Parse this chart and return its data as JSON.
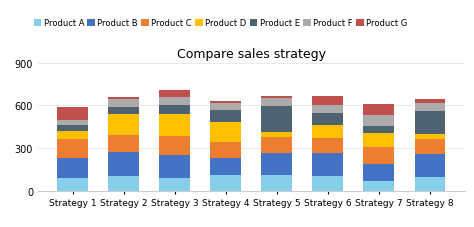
{
  "title": "Compare sales strategy",
  "categories": [
    "Strategy 1",
    "Strategy 2",
    "Strategy 3",
    "Strategy 4",
    "Strategy 5",
    "Strategy 6",
    "Strategy 7",
    "Strategy 8"
  ],
  "products": [
    "Product A",
    "Product B",
    "Product C",
    "Product D",
    "Product E",
    "Product F",
    "Product G"
  ],
  "colors": [
    "#87CEEB",
    "#4472C4",
    "#ED7D31",
    "#FFC000",
    "#4E6272",
    "#ABABAB",
    "#C0504D"
  ],
  "values": {
    "Product A": [
      90,
      100,
      90,
      110,
      110,
      100,
      70,
      95
    ],
    "Product B": [
      140,
      170,
      160,
      120,
      155,
      165,
      120,
      160
    ],
    "Product C": [
      130,
      120,
      135,
      110,
      115,
      105,
      115,
      105
    ],
    "Product D": [
      60,
      150,
      155,
      145,
      30,
      90,
      100,
      35
    ],
    "Product E": [
      40,
      50,
      60,
      80,
      185,
      85,
      50,
      165
    ],
    "Product F": [
      40,
      55,
      60,
      55,
      55,
      55,
      75,
      55
    ],
    "Product G": [
      90,
      15,
      50,
      10,
      15,
      65,
      80,
      30
    ]
  },
  "ylim": [
    0,
    900
  ],
  "yticks": [
    0,
    300,
    600,
    900
  ],
  "background_color": "#ffffff"
}
